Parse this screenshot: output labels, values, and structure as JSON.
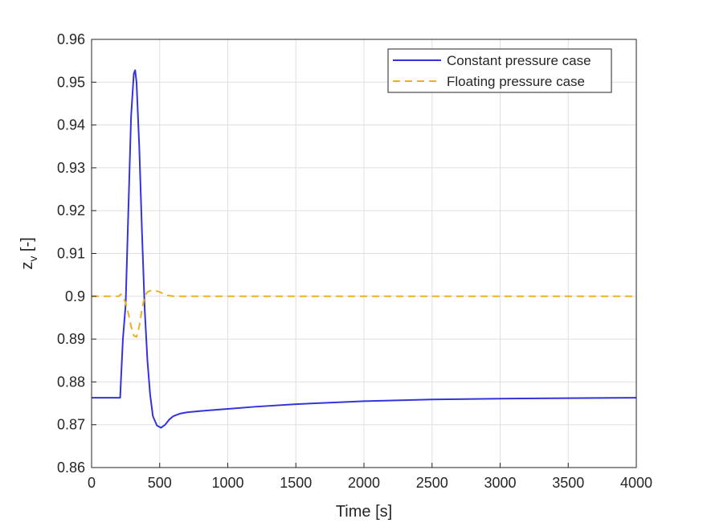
{
  "chart_data": {
    "type": "line",
    "title": "",
    "xlabel": "Time [s]",
    "ylabel": "z",
    "ylabel_subscript": "v",
    "ylabel_suffix": " [-]",
    "xlim": [
      0,
      4000
    ],
    "ylim": [
      0.86,
      0.96
    ],
    "xticks": [
      0,
      500,
      1000,
      1500,
      2000,
      2500,
      3000,
      3500,
      4000
    ],
    "xtick_labels": [
      "0",
      "500",
      "1000",
      "1500",
      "2000",
      "2500",
      "3000",
      "3500",
      "4000"
    ],
    "yticks": [
      0.86,
      0.87,
      0.88,
      0.89,
      0.9,
      0.91,
      0.92,
      0.93,
      0.94,
      0.95,
      0.96
    ],
    "ytick_labels": [
      "0.86",
      "0.87",
      "0.88",
      "0.89",
      "0.9",
      "0.91",
      "0.92",
      "0.93",
      "0.94",
      "0.95",
      "0.96"
    ],
    "grid": true,
    "legend_position": "top-right",
    "series": [
      {
        "name": "Constant pressure case",
        "color": "#3333dd",
        "style": "solid",
        "x": [
          0,
          210,
          215,
          230,
          250,
          270,
          290,
          310,
          320,
          330,
          350,
          370,
          390,
          410,
          430,
          450,
          480,
          510,
          540,
          570,
          600,
          650,
          700,
          800,
          1000,
          1200,
          1500,
          2000,
          2500,
          3000,
          3500,
          4000
        ],
        "y": [
          0.8763,
          0.8763,
          0.88,
          0.89,
          0.898,
          0.92,
          0.942,
          0.952,
          0.9528,
          0.95,
          0.935,
          0.915,
          0.897,
          0.885,
          0.877,
          0.872,
          0.8698,
          0.8693,
          0.87,
          0.8712,
          0.872,
          0.8726,
          0.8729,
          0.8732,
          0.8737,
          0.8742,
          0.8748,
          0.8755,
          0.8759,
          0.8761,
          0.8762,
          0.8763
        ]
      },
      {
        "name": "Floating pressure case",
        "color": "#edb120",
        "style": "dashed",
        "x": [
          0,
          200,
          215,
          230,
          250,
          270,
          290,
          310,
          330,
          350,
          370,
          390,
          410,
          440,
          470,
          500,
          530,
          560,
          600,
          650,
          700,
          800,
          1000,
          2000,
          3000,
          4000
        ],
        "y": [
          0.9,
          0.9,
          0.9005,
          0.8998,
          0.8985,
          0.896,
          0.893,
          0.8908,
          0.8905,
          0.893,
          0.897,
          0.9,
          0.901,
          0.9014,
          0.9013,
          0.901,
          0.9005,
          0.9002,
          0.9,
          0.9,
          0.9,
          0.9,
          0.9,
          0.9,
          0.9,
          0.9
        ]
      }
    ]
  }
}
